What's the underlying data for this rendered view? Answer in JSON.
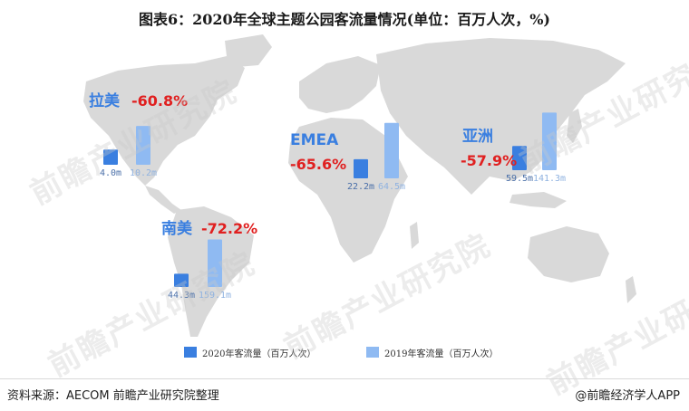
{
  "title": "图表6：2020年全球主题公园客流量情况(单位：百万人次，%)",
  "source": "资料来源：AECOM 前瞻产业研究院整理",
  "brand": "@前瞻经济学人APP",
  "watermark": "前瞻产业研究院",
  "colors": {
    "bar2020": "#3A7FE0",
    "bar2019": "#8FBAF2",
    "decline": "#E02020",
    "region": "#3A7FE0",
    "land": "#D9D9D9"
  },
  "chart_data": {
    "type": "bar",
    "title": "图表6：2020年全球主题公园客流量情况(单位：百万人次，%)",
    "legend": [
      "2020年客流量（百万人次）",
      "2019年客流量（百万人次）"
    ],
    "legend_position": "bottom",
    "regions": [
      {
        "name": "拉美",
        "change": "-60.8%",
        "v2020": 4.0,
        "v2019": 10.2,
        "label2020": "4.0m",
        "label2019": "10.2m"
      },
      {
        "name": "EMEA",
        "change": "-65.6%",
        "v2020": 22.2,
        "v2019": 64.5,
        "label2020": "22.2m",
        "label2019": "64.5m"
      },
      {
        "name": "亚洲",
        "change": "-57.9%",
        "v2020": 59.5,
        "v2019": 141.3,
        "label2020": "59.5m",
        "label2019": "141.3m"
      },
      {
        "name": "南美",
        "change": "-72.2%",
        "v2020": 44.3,
        "v2019": 159.1,
        "label2020": "44.3m",
        "label2019": "159.1m"
      }
    ]
  }
}
